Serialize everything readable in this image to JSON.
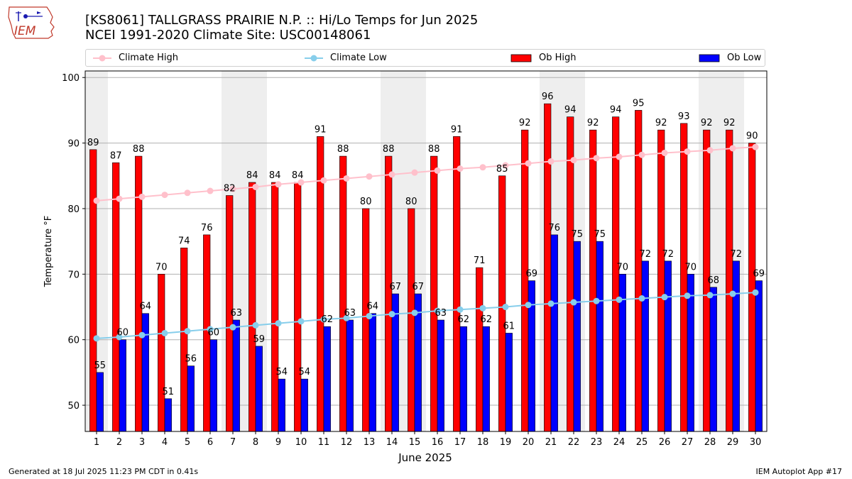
{
  "title": {
    "line1": "[KS8061] TALLGRASS PRAIRIE N.P. :: Hi/Lo Temps for Jun 2025",
    "line2": "NCEI 1991-2020 Climate Site: USC00148061"
  },
  "logo": {
    "text": "IEM"
  },
  "legend": {
    "climate_high": "Climate High",
    "climate_low": "Climate Low",
    "ob_high": "Ob High",
    "ob_low": "Ob Low"
  },
  "colors": {
    "climate_high": "#ffc0cb",
    "climate_low": "#87ceeb",
    "ob_high": "#ff0000",
    "ob_low": "#0000ff",
    "weekend_shade": "#eeeeee"
  },
  "footer": {
    "left": "Generated at 18 Jul 2025 11:23 PM CDT in 0.41s",
    "right": "IEM Autoplot App #17"
  },
  "chart_data": {
    "type": "bar",
    "xlabel": "June 2025",
    "ylabel": "Temperature °F",
    "ylim": [
      46,
      101
    ],
    "yticks": [
      50,
      60,
      70,
      80,
      90,
      100
    ],
    "grid": true,
    "legend_position": "top",
    "categories": [
      "1",
      "2",
      "3",
      "4",
      "5",
      "6",
      "7",
      "8",
      "9",
      "10",
      "11",
      "12",
      "13",
      "14",
      "15",
      "16",
      "17",
      "18",
      "19",
      "20",
      "21",
      "22",
      "23",
      "24",
      "25",
      "26",
      "27",
      "28",
      "29",
      "30"
    ],
    "shaded_days": [
      1,
      7,
      8,
      14,
      15,
      21,
      22,
      28,
      29
    ],
    "series": [
      {
        "name": "Ob High",
        "kind": "bar",
        "values": [
          89,
          87,
          88,
          70,
          74,
          76,
          82,
          84,
          84,
          84,
          91,
          88,
          80,
          88,
          80,
          88,
          91,
          71,
          85,
          92,
          96,
          94,
          92,
          94,
          95,
          92,
          93,
          92,
          92,
          90
        ]
      },
      {
        "name": "Ob Low",
        "kind": "bar",
        "values": [
          55,
          60,
          64,
          51,
          56,
          60,
          63,
          59,
          54,
          54,
          62,
          63,
          64,
          67,
          67,
          63,
          62,
          62,
          61,
          69,
          76,
          75,
          75,
          70,
          72,
          72,
          70,
          68,
          72,
          69
        ]
      },
      {
        "name": "Climate High",
        "kind": "line",
        "values": [
          81.2,
          81.5,
          81.8,
          82.1,
          82.4,
          82.7,
          83.0,
          83.3,
          83.7,
          84.0,
          84.3,
          84.6,
          84.9,
          85.2,
          85.5,
          85.8,
          86.1,
          86.3,
          86.6,
          86.9,
          87.2,
          87.4,
          87.7,
          87.9,
          88.2,
          88.5,
          88.7,
          88.9,
          89.2,
          89.4
        ]
      },
      {
        "name": "Climate Low",
        "kind": "line",
        "values": [
          60.2,
          60.4,
          60.7,
          61.0,
          61.3,
          61.6,
          61.9,
          62.2,
          62.5,
          62.8,
          63.1,
          63.3,
          63.6,
          63.9,
          64.1,
          64.4,
          64.6,
          64.8,
          65.0,
          65.3,
          65.5,
          65.7,
          65.9,
          66.1,
          66.3,
          66.5,
          66.7,
          66.8,
          67.0,
          67.2
        ]
      }
    ]
  }
}
